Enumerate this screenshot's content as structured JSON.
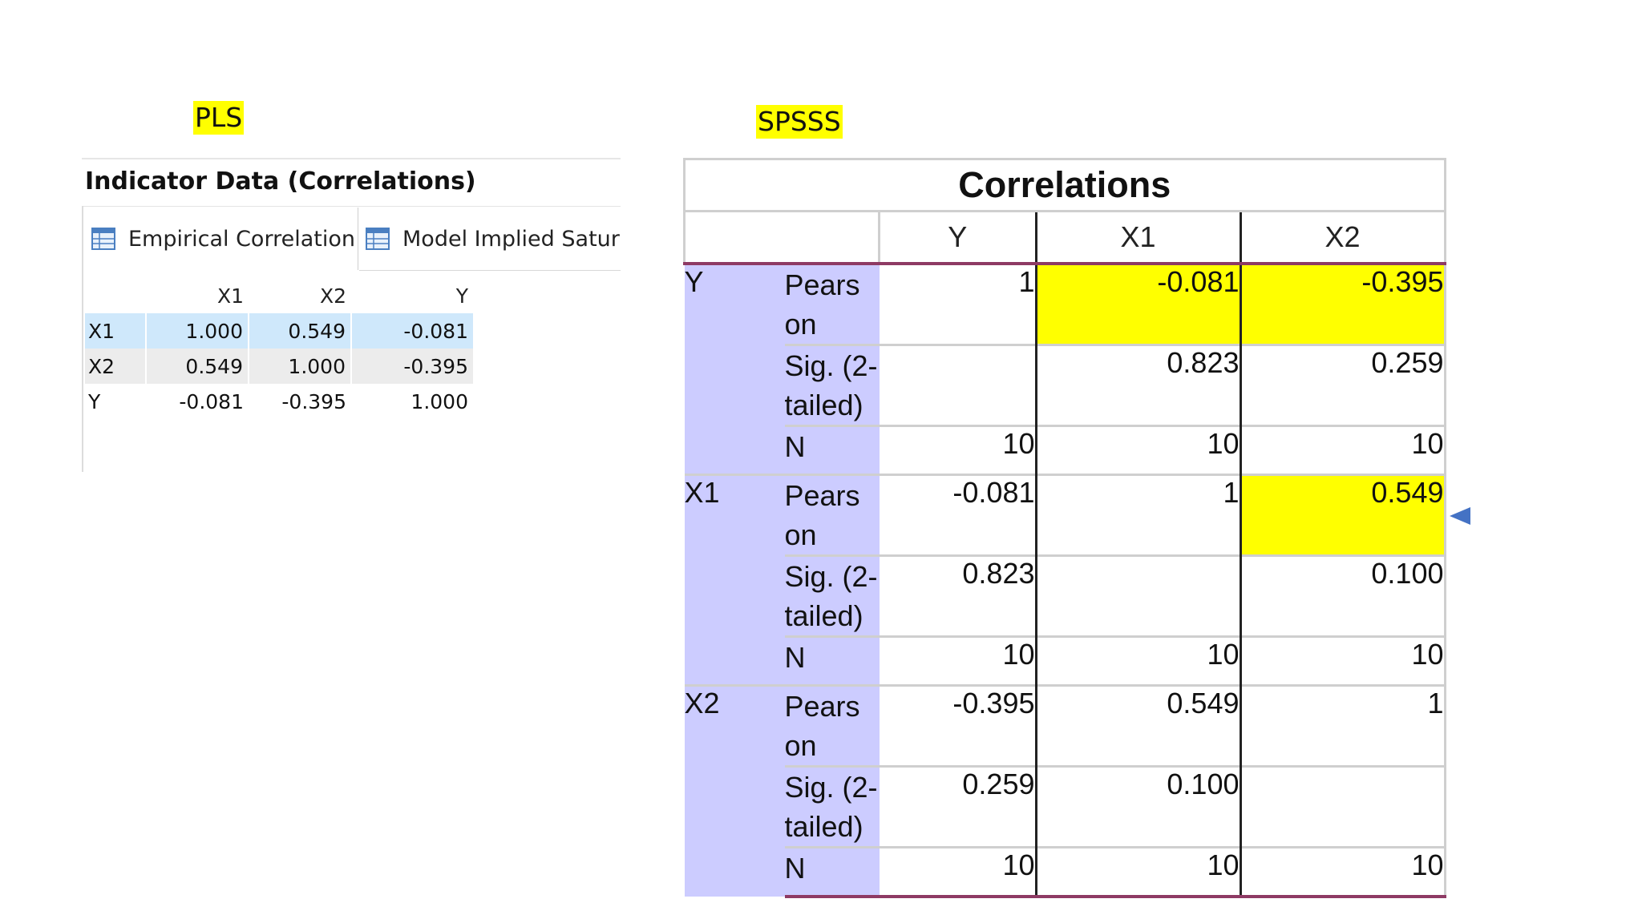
{
  "labels": {
    "pls": "PLS",
    "spss": "SPSSS"
  },
  "pls": {
    "title": "Indicator Data (Correlations)",
    "tabs": [
      {
        "label": "Empirical Correlation ...",
        "icon": "table-icon"
      },
      {
        "label": "Model Implied Saturat",
        "icon": "table-icon"
      }
    ],
    "columns": [
      "X1",
      "X2",
      "Y"
    ],
    "rows": [
      {
        "label": "X1",
        "values": [
          "1.000",
          "0.549",
          "-0.081"
        ],
        "selected": true
      },
      {
        "label": "X2",
        "values": [
          "0.549",
          "1.000",
          "-0.395"
        ]
      },
      {
        "label": "Y",
        "values": [
          "-0.081",
          "-0.395",
          "1.000"
        ]
      }
    ],
    "colors": {
      "selected_row": "#cfe8fb",
      "alt_row": "#ececec"
    }
  },
  "spss": {
    "title": "Correlations",
    "columns": [
      "Y",
      "X1",
      "X2"
    ],
    "stat_labels": {
      "pearson": "Pears\non",
      "sig": "Sig. (2-\ntailed)",
      "n": "N"
    },
    "groups": [
      {
        "var": "Y",
        "pearson": [
          "1",
          "-0.081",
          "-0.395"
        ],
        "sig": [
          "",
          "0.823",
          "0.259"
        ],
        "n": [
          "10",
          "10",
          "10"
        ]
      },
      {
        "var": "X1",
        "pearson": [
          "-0.081",
          "1",
          "0.549"
        ],
        "sig": [
          "0.823",
          "",
          "0.100"
        ],
        "n": [
          "10",
          "10",
          "10"
        ]
      },
      {
        "var": "X2",
        "pearson": [
          "-0.395",
          "0.549",
          "1"
        ],
        "sig": [
          "0.259",
          "0.100",
          ""
        ],
        "n": [
          "10",
          "10",
          "10"
        ]
      }
    ],
    "colors": {
      "label_bg": "#ccccff",
      "highlight": "#ffff00",
      "rule": "#8e3a64",
      "arrow": "#4472c4"
    }
  }
}
